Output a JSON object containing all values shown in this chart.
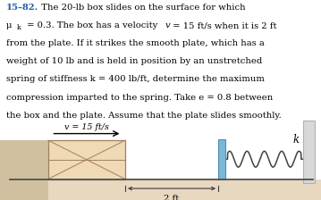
{
  "title_num": "15–82.",
  "title_rest": "  The 20-lb box slides on the surface for which",
  "line2a": "μ",
  "line2b": "k",
  "line2c": "  = 0.3. The box has a velocity ",
  "line2d": "v",
  "line2e": " = 15 ft/s when it is 2 ft",
  "line3": "from the plate. If it strikes the smooth plate, which has a",
  "line4": "weight of 10 lb and is held in position by an unstretched",
  "line5": "spring of stiffness ",
  "line5b": "k",
  "line5c": " = 400 lb/ft, determine the maximum",
  "line6": "compression imparted to the spring. Take ",
  "line6b": "e",
  "line6c": " = 0.8 between",
  "line7": "the box and the plate. Assume that the plate slides smoothly.",
  "velocity_label": "v = 15 ft/s",
  "distance_label": "2 ft",
  "spring_label": "k",
  "bg_color": "#ffffff",
  "box_fill": "#f0d9b5",
  "box_edge": "#a08060",
  "plate_fill": "#7ab8d8",
  "plate_edge": "#5090b0",
  "ground_fill": "#e8d8c0",
  "spring_color": "#404040",
  "wall_fill": "#d8d8d8",
  "wall_edge": "#b0b0b0",
  "floor_color": "#505050",
  "text_color": "#000000",
  "bold_color": "#1a5ca8",
  "arrow_color": "#000000",
  "dim_color": "#404040",
  "shadow_fill": "#d0c0a0"
}
